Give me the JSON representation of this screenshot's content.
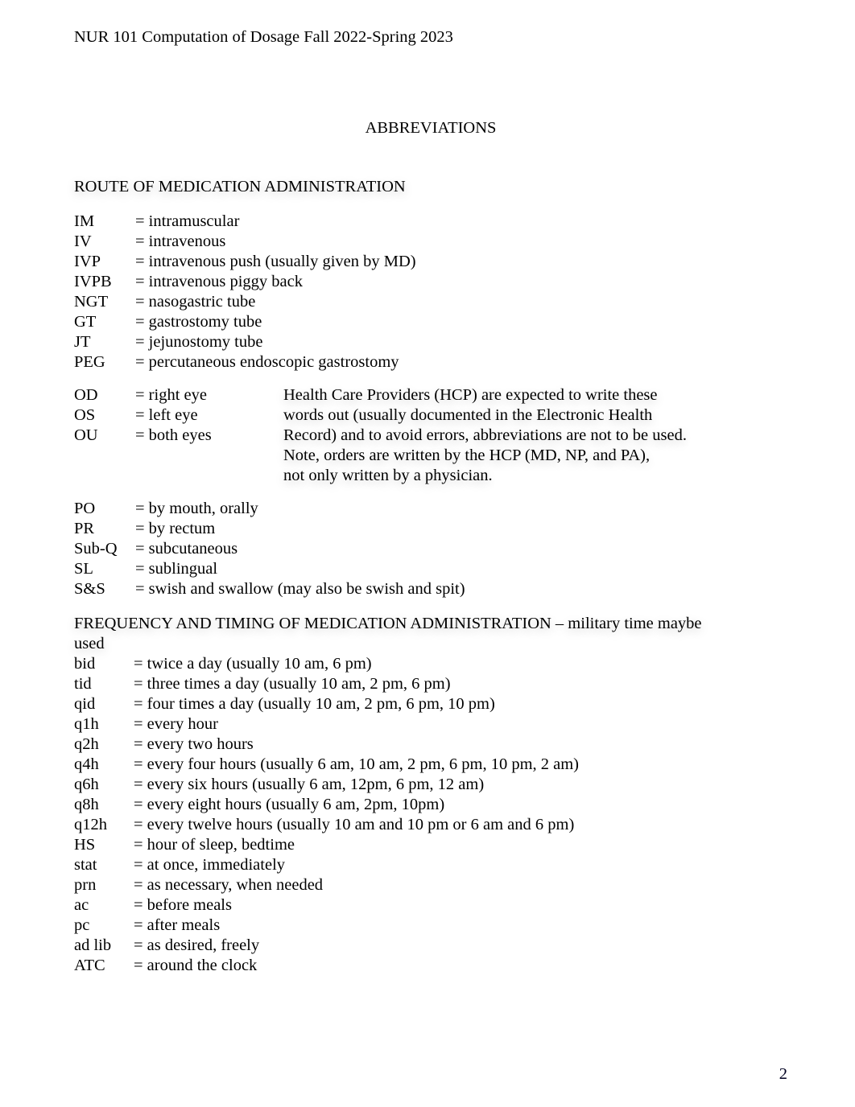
{
  "header": "NUR 101 Computation of Dosage Fall 2022-Spring 2023",
  "title": "ABBREVIATIONS",
  "section_route": "ROUTE OF MEDICATION ADMINISTRATION",
  "route_rows": [
    {
      "abbr": "IM",
      "def": "= intramuscular"
    },
    {
      "abbr": "IV",
      "def": "= intravenous"
    },
    {
      "abbr": "IVP",
      "def": "= intravenous push (usually given by MD)"
    },
    {
      "abbr": "IVPB",
      "def": "= intravenous piggy back"
    },
    {
      "abbr": "NGT",
      "def": "= nasogastric tube"
    },
    {
      "abbr": "GT",
      "def": "=   gastrostomy tube"
    },
    {
      "abbr": "JT",
      "def": "=   jejunostomy tube"
    },
    {
      "abbr": "PEG",
      "def": "=   percutaneous endoscopic gastrostomy"
    }
  ],
  "eye_rows": [
    {
      "abbr": "OD",
      "def": "=   right eye"
    },
    {
      "abbr": "OS",
      "def": "=   left eye"
    },
    {
      "abbr": "OU",
      "def": "= both eyes"
    }
  ],
  "eye_note": [
    "Health Care Providers (HCP) are expected to write these",
    "words out (usually documented in the Electronic Health",
    "Record) and to avoid errors, abbreviations are not  to be used.",
    "Note, orders are written by the HCP (MD, NP, and PA),",
    "not only written by a physician."
  ],
  "oral_rows": [
    {
      "abbr": "PO",
      "def": "= by mouth, orally"
    },
    {
      "abbr": "PR",
      "def": "= by rectum"
    },
    {
      "abbr": "Sub-Q",
      "def": "= subcutaneous"
    },
    {
      "abbr": "SL",
      "def": "= sublingual"
    },
    {
      "abbr": "S&S",
      "def": "= swish and swallow (may also be swish and spit)"
    }
  ],
  "section_freq_l1": "FREQUENCY AND TIMING OF MEDICATION ADMINISTRATION – military time maybe",
  "section_freq_l2": "used",
  "freq_rows": [
    {
      "abbr": "bid",
      "def": "= twice a day (usually 10 am, 6 pm)"
    },
    {
      "abbr": "tid",
      "def": "= three times a day (usually 10 am, 2 pm, 6 pm)"
    },
    {
      "abbr": "qid",
      "def": "= four times a day (usually 10 am, 2 pm, 6 pm, 10 pm)"
    },
    {
      "abbr": "q1h",
      "def": "= every hour"
    },
    {
      "abbr": "q2h",
      "def": "= every two hours"
    },
    {
      "abbr": "q4h",
      "def": "= every four hours (usually 6 am, 10 am, 2 pm, 6 pm, 10 pm, 2 am)"
    },
    {
      "abbr": "q6h",
      "def": "= every six hours (usually 6 am, 12pm, 6 pm, 12 am)"
    },
    {
      "abbr": "q8h",
      "def": "= every eight hours (usually 6 am, 2pm, 10pm)"
    },
    {
      "abbr": "q12h",
      "def": "= every twelve hours (usually 10 am and 10 pm or 6 am and 6 pm)"
    },
    {
      "abbr": "HS",
      "def": "=   hour of sleep, bedtime"
    },
    {
      "abbr": "stat",
      "def": "= at once, immediately"
    },
    {
      "abbr": "prn",
      "def": "= as necessary, when needed"
    },
    {
      "abbr": "ac",
      "def": "= before meals"
    },
    {
      "abbr": "pc",
      "def": "= after meals"
    },
    {
      "abbr": "ad lib",
      "def": "= as desired, freely"
    },
    {
      "abbr": "ATC",
      "def": "= around the clock"
    }
  ],
  "page_number": "2"
}
